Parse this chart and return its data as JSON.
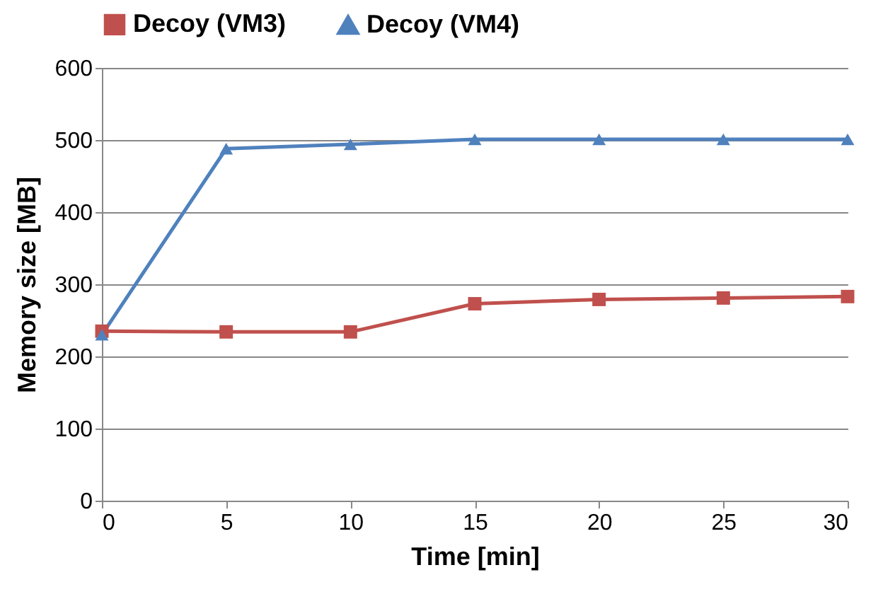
{
  "chart_data": {
    "type": "line",
    "xlabel": "Time [min]",
    "ylabel": "Memory size [MB]",
    "x": [
      0,
      5,
      10,
      15,
      20,
      25,
      30
    ],
    "series": [
      {
        "name": "Decoy (VM3)",
        "color": "#c0504d",
        "marker": "square",
        "values": [
          235,
          234,
          234,
          273,
          279,
          281,
          283
        ]
      },
      {
        "name": "Decoy (VM4)",
        "color": "#4f81bd",
        "marker": "triangle",
        "values": [
          230,
          488,
          494,
          501,
          501,
          501,
          501
        ]
      }
    ],
    "xlim": [
      0,
      30
    ],
    "xticks": [
      0,
      5,
      10,
      15,
      20,
      25,
      30
    ],
    "ylim": [
      0,
      600
    ],
    "yticks": [
      0,
      100,
      200,
      300,
      400,
      500,
      600
    ],
    "grid": "y",
    "legend": "top"
  }
}
